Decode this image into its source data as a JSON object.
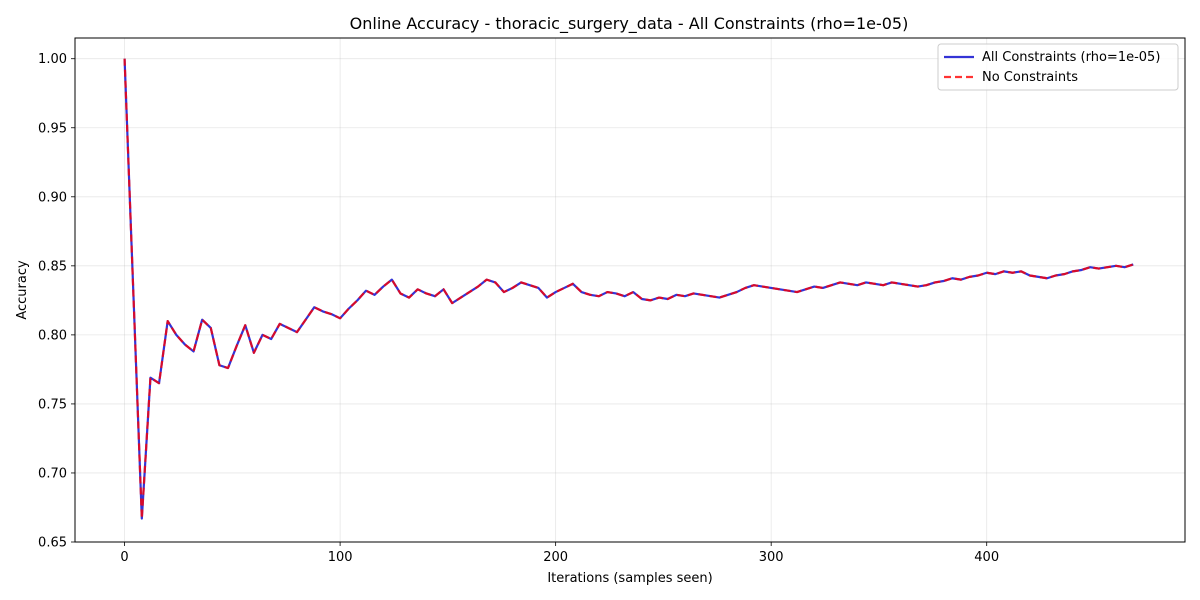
{
  "chart_data": {
    "type": "line",
    "title": "Online Accuracy - thoracic_surgery_data - All Constraints (rho=1e-05)",
    "xlabel": "Iterations (samples seen)",
    "ylabel": "Accuracy",
    "xlim": [
      -23,
      492
    ],
    "ylim": [
      0.65,
      1.015
    ],
    "xticks": [
      0,
      100,
      200,
      300,
      400
    ],
    "xtick_labels": [
      "0",
      "100",
      "200",
      "300",
      "400"
    ],
    "yticks": [
      0.65,
      0.7,
      0.75,
      0.8,
      0.85,
      0.9,
      0.95,
      1.0
    ],
    "ytick_labels": [
      "0.65",
      "0.70",
      "0.75",
      "0.80",
      "0.85",
      "0.90",
      "0.95",
      "1.00"
    ],
    "grid": true,
    "legend_position": "top-right",
    "x": [
      0,
      8,
      12,
      16,
      20,
      24,
      28,
      32,
      36,
      40,
      44,
      48,
      52,
      56,
      60,
      64,
      68,
      72,
      76,
      80,
      84,
      88,
      92,
      96,
      100,
      104,
      108,
      112,
      116,
      120,
      124,
      128,
      132,
      136,
      140,
      144,
      148,
      152,
      156,
      160,
      164,
      168,
      172,
      176,
      180,
      184,
      188,
      192,
      196,
      200,
      204,
      208,
      212,
      216,
      220,
      224,
      228,
      232,
      236,
      240,
      244,
      248,
      252,
      256,
      260,
      264,
      268,
      272,
      276,
      280,
      284,
      288,
      292,
      296,
      300,
      304,
      308,
      312,
      316,
      320,
      324,
      328,
      332,
      336,
      340,
      344,
      348,
      352,
      356,
      360,
      364,
      368,
      372,
      376,
      380,
      384,
      388,
      392,
      396,
      400,
      404,
      408,
      412,
      416,
      420,
      424,
      428,
      432,
      436,
      440,
      444,
      448,
      452,
      456,
      460,
      464,
      468
    ],
    "series": [
      {
        "name": "All Constraints (rho=1e-05)",
        "color": "#0000cc",
        "style": "solid",
        "values": [
          1.0,
          0.667,
          0.769,
          0.765,
          0.81,
          0.8,
          0.793,
          0.788,
          0.811,
          0.805,
          0.778,
          0.776,
          0.792,
          0.807,
          0.787,
          0.8,
          0.797,
          0.808,
          0.805,
          0.802,
          0.811,
          0.82,
          0.817,
          0.815,
          0.812,
          0.819,
          0.825,
          0.832,
          0.829,
          0.835,
          0.84,
          0.83,
          0.827,
          0.833,
          0.83,
          0.828,
          0.833,
          0.823,
          0.827,
          0.831,
          0.835,
          0.84,
          0.838,
          0.831,
          0.834,
          0.838,
          0.836,
          0.834,
          0.827,
          0.831,
          0.834,
          0.837,
          0.831,
          0.829,
          0.828,
          0.831,
          0.83,
          0.828,
          0.831,
          0.826,
          0.825,
          0.827,
          0.826,
          0.829,
          0.828,
          0.83,
          0.829,
          0.828,
          0.827,
          0.829,
          0.831,
          0.834,
          0.836,
          0.835,
          0.834,
          0.833,
          0.832,
          0.831,
          0.833,
          0.835,
          0.834,
          0.836,
          0.838,
          0.837,
          0.836,
          0.838,
          0.837,
          0.836,
          0.838,
          0.837,
          0.836,
          0.835,
          0.836,
          0.838,
          0.839,
          0.841,
          0.84,
          0.842,
          0.843,
          0.845,
          0.844,
          0.846,
          0.845,
          0.846,
          0.843,
          0.842,
          0.841,
          0.843,
          0.844,
          0.846,
          0.847,
          0.849,
          0.848,
          0.849,
          0.85,
          0.849,
          0.851
        ]
      },
      {
        "name": "No Constraints",
        "color": "#ff0000",
        "style": "dashed",
        "values": [
          1.0,
          0.667,
          0.769,
          0.765,
          0.81,
          0.8,
          0.793,
          0.788,
          0.811,
          0.805,
          0.778,
          0.776,
          0.792,
          0.807,
          0.787,
          0.8,
          0.797,
          0.808,
          0.805,
          0.802,
          0.811,
          0.82,
          0.817,
          0.815,
          0.812,
          0.819,
          0.825,
          0.832,
          0.829,
          0.835,
          0.84,
          0.83,
          0.827,
          0.833,
          0.83,
          0.828,
          0.833,
          0.823,
          0.827,
          0.831,
          0.835,
          0.84,
          0.838,
          0.831,
          0.834,
          0.838,
          0.836,
          0.834,
          0.827,
          0.831,
          0.834,
          0.837,
          0.831,
          0.829,
          0.828,
          0.831,
          0.83,
          0.828,
          0.831,
          0.826,
          0.825,
          0.827,
          0.826,
          0.829,
          0.828,
          0.83,
          0.829,
          0.828,
          0.827,
          0.829,
          0.831,
          0.834,
          0.836,
          0.835,
          0.834,
          0.833,
          0.832,
          0.831,
          0.833,
          0.835,
          0.834,
          0.836,
          0.838,
          0.837,
          0.836,
          0.838,
          0.837,
          0.836,
          0.838,
          0.837,
          0.836,
          0.835,
          0.836,
          0.838,
          0.839,
          0.841,
          0.84,
          0.842,
          0.843,
          0.845,
          0.844,
          0.846,
          0.845,
          0.846,
          0.843,
          0.842,
          0.841,
          0.843,
          0.844,
          0.846,
          0.847,
          0.849,
          0.848,
          0.849,
          0.85,
          0.849,
          0.851
        ]
      }
    ]
  }
}
